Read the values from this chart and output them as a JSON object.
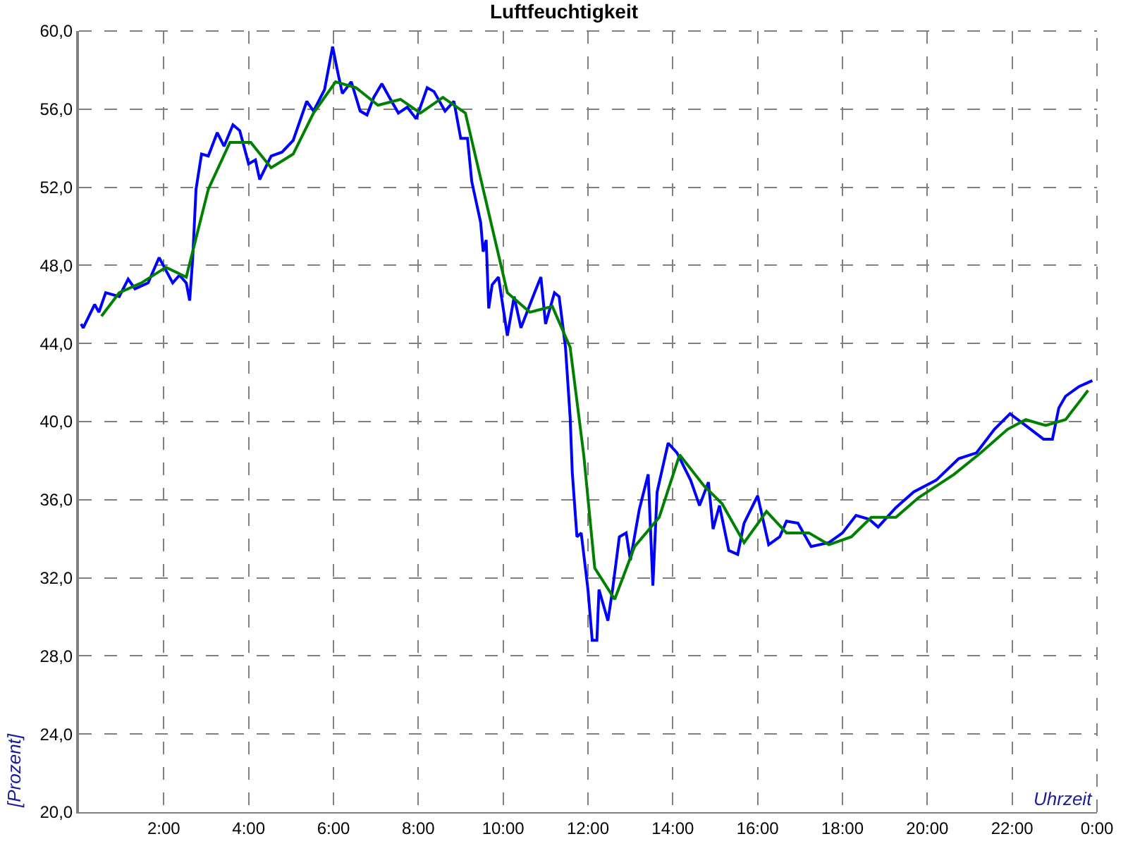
{
  "chart_data": {
    "type": "line",
    "title": "Luftfeuchtigkeit",
    "xlabel": "Uhrzeit",
    "ylabel": "[Prozent]",
    "xlim": [
      0,
      24
    ],
    "xticks": [
      {
        "value": 0,
        "label": null
      },
      {
        "value": 2,
        "label": "2:00"
      },
      {
        "value": 4,
        "label": "4:00"
      },
      {
        "value": 6,
        "label": "6:00"
      },
      {
        "value": 8,
        "label": "8:00"
      },
      {
        "value": 10,
        "label": "10:00"
      },
      {
        "value": 12,
        "label": "12:00"
      },
      {
        "value": 14,
        "label": "14:00"
      },
      {
        "value": 16,
        "label": "16:00"
      },
      {
        "value": 18,
        "label": "18:00"
      },
      {
        "value": 20,
        "label": "20:00"
      },
      {
        "value": 22,
        "label": "22:00"
      },
      {
        "value": 24,
        "label": "0:00"
      }
    ],
    "ylim": [
      20,
      60
    ],
    "yticks": [
      {
        "value": 20,
        "label": "20,0"
      },
      {
        "value": 24,
        "label": "24,0"
      },
      {
        "value": 28,
        "label": "28,0"
      },
      {
        "value": 32,
        "label": "32,0"
      },
      {
        "value": 36,
        "label": "36,0"
      },
      {
        "value": 40,
        "label": "40,0"
      },
      {
        "value": 44,
        "label": "44,0"
      },
      {
        "value": 48,
        "label": "48,0"
      },
      {
        "value": 52,
        "label": "52,0"
      },
      {
        "value": 56,
        "label": "56,0"
      },
      {
        "value": 60,
        "label": "60,0"
      }
    ],
    "grid": true,
    "line_style": "solid",
    "series": [
      {
        "color": "#0000ff",
        "x": [
          0.05,
          0.1,
          0.37,
          0.47,
          0.63,
          0.95,
          1.16,
          1.32,
          1.63,
          1.89,
          2.21,
          2.37,
          2.53,
          2.61,
          2.68,
          2.76,
          2.89,
          3.05,
          3.26,
          3.42,
          3.63,
          3.79,
          4.0,
          4.16,
          4.26,
          4.53,
          4.79,
          5.05,
          5.37,
          5.53,
          5.79,
          5.98,
          6.1,
          6.21,
          6.42,
          6.63,
          6.79,
          6.95,
          7.14,
          7.32,
          7.53,
          7.74,
          7.95,
          8.21,
          8.37,
          8.63,
          8.84,
          9.0,
          9.16,
          9.26,
          9.47,
          9.53,
          9.6,
          9.66,
          9.74,
          9.89,
          10.1,
          10.26,
          10.42,
          10.58,
          10.74,
          10.89,
          11.0,
          11.21,
          11.32,
          11.47,
          11.58,
          11.63,
          11.74,
          11.84,
          12.0,
          12.1,
          12.21,
          12.26,
          12.47,
          12.58,
          12.74,
          12.9,
          13.0,
          13.21,
          13.42,
          13.53,
          13.63,
          13.89,
          14.1,
          14.42,
          14.63,
          14.84,
          14.95,
          15.1,
          15.32,
          15.53,
          15.68,
          16.0,
          16.26,
          16.52,
          16.68,
          16.95,
          17.26,
          17.68,
          18.0,
          18.32,
          18.63,
          18.84,
          19.26,
          19.68,
          20.21,
          20.74,
          21.16,
          21.58,
          21.95,
          22.32,
          22.74,
          22.95,
          23.1,
          23.26,
          23.58,
          23.89
        ],
        "values": [
          45.0,
          44.8,
          46.0,
          45.6,
          46.6,
          46.4,
          47.3,
          46.8,
          47.1,
          48.4,
          47.1,
          47.5,
          47.1,
          46.2,
          48.3,
          51.9,
          53.7,
          53.6,
          54.8,
          54.1,
          55.2,
          54.9,
          53.2,
          53.4,
          52.4,
          53.6,
          53.8,
          54.4,
          56.4,
          55.9,
          57.0,
          59.2,
          57.9,
          56.8,
          57.4,
          55.9,
          55.7,
          56.6,
          57.3,
          56.6,
          55.8,
          56.1,
          55.5,
          57.1,
          56.9,
          55.9,
          56.4,
          54.5,
          54.5,
          52.3,
          50.2,
          48.7,
          49.3,
          45.8,
          47.0,
          47.4,
          44.4,
          46.4,
          44.8,
          45.7,
          46.6,
          47.4,
          45.0,
          46.6,
          46.4,
          43.8,
          40.2,
          37.4,
          34.1,
          34.3,
          31.4,
          28.8,
          28.8,
          31.4,
          29.8,
          31.4,
          34.1,
          34.3,
          32.9,
          35.5,
          37.3,
          31.6,
          36.4,
          38.9,
          38.4,
          37.0,
          35.7,
          36.9,
          34.5,
          35.7,
          33.4,
          33.2,
          34.8,
          36.2,
          33.7,
          34.1,
          34.9,
          34.8,
          33.6,
          33.8,
          34.3,
          35.2,
          35.0,
          34.6,
          35.6,
          36.4,
          37.0,
          38.1,
          38.4,
          39.6,
          40.4,
          39.8,
          39.1,
          39.1,
          40.7,
          41.3,
          41.8,
          42.1
        ]
      },
      {
        "color": "#008000",
        "x": [
          0.53,
          0.95,
          1.47,
          2.05,
          2.53,
          3.05,
          3.56,
          4.05,
          4.53,
          5.05,
          5.53,
          6.05,
          6.53,
          7.05,
          7.58,
          8.05,
          8.58,
          9.11,
          10.1,
          10.63,
          11.16,
          11.58,
          11.9,
          12.16,
          12.63,
          13.1,
          13.68,
          14.16,
          14.74,
          15.16,
          15.68,
          16.21,
          16.68,
          17.21,
          17.68,
          18.21,
          18.68,
          19.26,
          19.79,
          20.63,
          21.26,
          21.89,
          22.32,
          22.79,
          23.26,
          23.79
        ],
        "values": [
          45.4,
          46.6,
          47.1,
          47.9,
          47.4,
          51.9,
          54.3,
          54.3,
          53.0,
          53.7,
          55.8,
          57.4,
          57.1,
          56.2,
          56.5,
          55.8,
          56.6,
          55.8,
          46.6,
          45.6,
          45.9,
          43.8,
          38.3,
          32.5,
          30.9,
          33.6,
          35.1,
          38.3,
          36.7,
          35.8,
          33.8,
          35.4,
          34.3,
          34.3,
          33.7,
          34.1,
          35.1,
          35.1,
          36.1,
          37.3,
          38.4,
          39.6,
          40.1,
          39.8,
          40.1,
          41.6
        ]
      }
    ]
  }
}
